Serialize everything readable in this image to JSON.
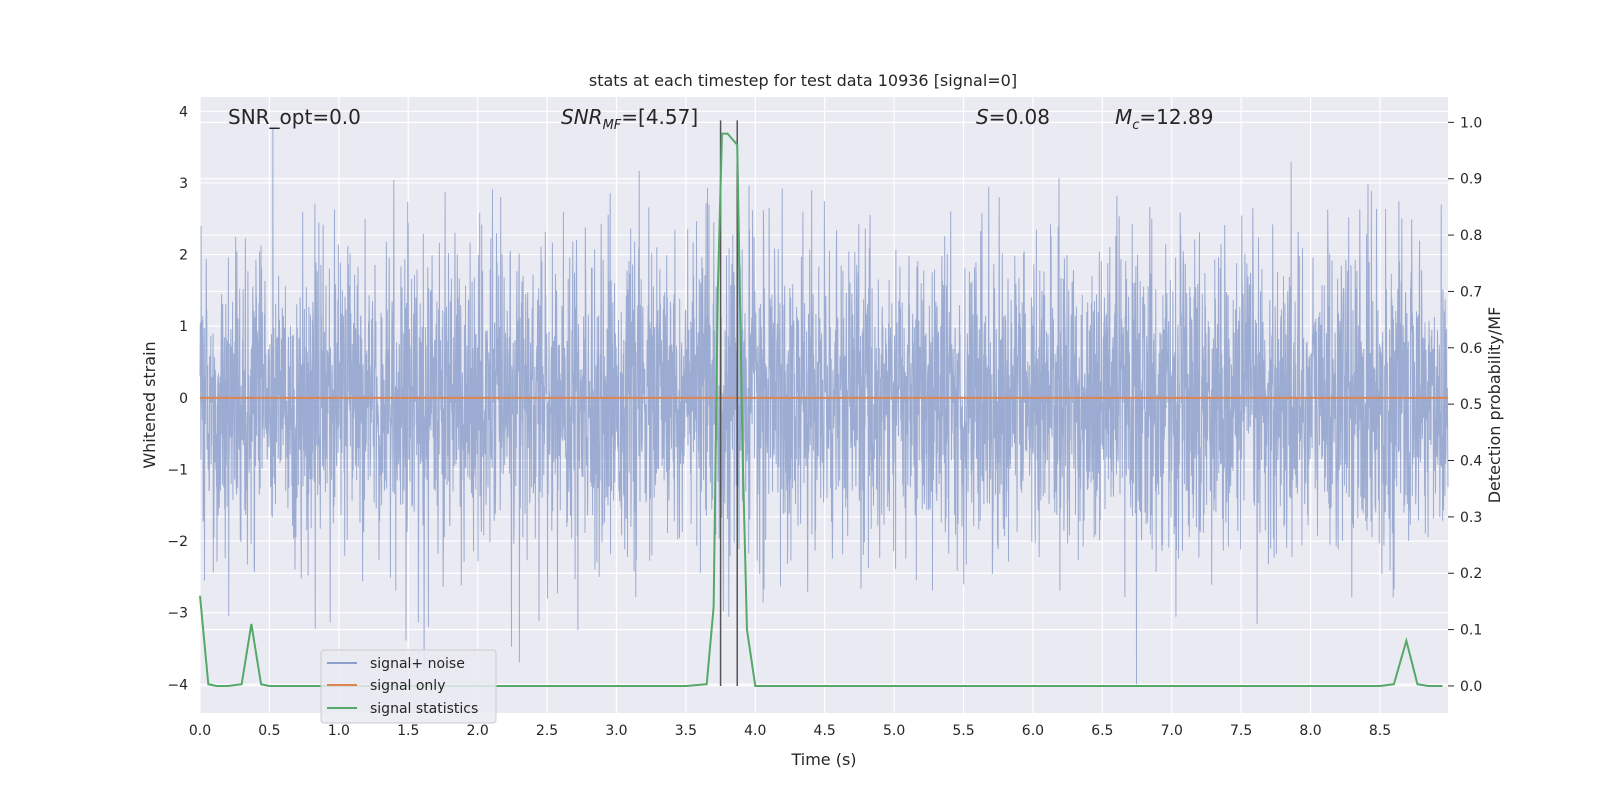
{
  "chart_data": {
    "type": "line",
    "title": "stats at each timestep for test data 10936 [signal=0]",
    "xlabel": "Time (s)",
    "ylabel_left": "Whitened strain",
    "ylabel_right": "Detection probability/MF",
    "xlim": [
      0.0,
      8.99
    ],
    "ylim_left": [
      -4.4,
      4.2
    ],
    "ylim_right": [
      -0.048,
      1.045
    ],
    "x_ticks": [
      "0.0",
      "0.5",
      "1.0",
      "1.5",
      "2.0",
      "2.5",
      "3.0",
      "3.5",
      "4.0",
      "4.5",
      "5.0",
      "5.5",
      "6.0",
      "6.5",
      "7.0",
      "7.5",
      "8.0",
      "8.5"
    ],
    "y_ticks_left": [
      "−4",
      "−3",
      "−2",
      "−1",
      "0",
      "1",
      "2",
      "3",
      "4"
    ],
    "y_ticks_right": [
      "0.0",
      "0.1",
      "0.2",
      "0.3",
      "0.4",
      "0.5",
      "0.6",
      "0.7",
      "0.8",
      "0.9",
      "1.0"
    ],
    "grid": true,
    "legend_placement": "lower-left",
    "annotations": {
      "snr_opt": "SNR_opt=0.0",
      "snr_mf_sym": "SNR",
      "snr_mf_sub": "MF",
      "snr_mf_val": "=[4.57]",
      "s_sym": "S",
      "s_val": "=0.08",
      "mc_sym": "M",
      "mc_sub": "c",
      "mc_val": "=12.89"
    },
    "vlines_x": [
      3.75,
      3.87
    ],
    "series": [
      {
        "name": "signal+ noise",
        "color": "#8da0cb",
        "description_x_range": [
          0.0,
          8.99
        ],
        "envelope_abs_max": 4.0
      },
      {
        "name": "signal only",
        "color": "#dd8452",
        "x": [
          0.0,
          8.99
        ],
        "y": [
          0.0,
          0.0
        ]
      },
      {
        "name": "signal statistics",
        "color": "#55a868",
        "axis": "right",
        "x": [
          0.0,
          0.06,
          0.12,
          0.2,
          0.3,
          0.37,
          0.44,
          0.5,
          0.6,
          1.0,
          1.5,
          2.0,
          2.5,
          3.0,
          3.5,
          3.65,
          3.7,
          3.73,
          3.76,
          3.8,
          3.87,
          3.91,
          3.94,
          4.0,
          4.5,
          5.0,
          5.5,
          6.0,
          6.5,
          7.0,
          7.5,
          8.0,
          8.5,
          8.6,
          8.69,
          8.77,
          8.85,
          8.95
        ],
        "y": [
          0.16,
          0.003,
          0.0,
          0.0,
          0.003,
          0.11,
          0.003,
          0.0,
          0.0,
          0.0,
          0.0,
          0.0,
          0.0,
          0.0,
          0.0,
          0.003,
          0.14,
          0.7,
          0.98,
          0.98,
          0.96,
          0.4,
          0.1,
          0.0,
          0.0,
          0.0,
          0.0,
          0.0,
          0.0,
          0.0,
          0.0,
          0.0,
          0.0,
          0.003,
          0.08,
          0.003,
          0.0,
          0.0
        ]
      }
    ]
  }
}
